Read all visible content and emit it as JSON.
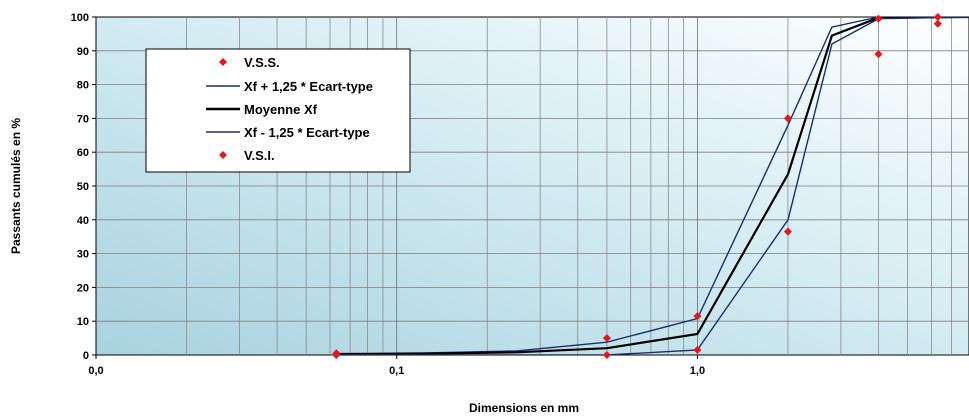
{
  "chart_data": {
    "type": "scatter",
    "x_scale": "log",
    "xlabel": "Dimensions en mm",
    "ylabel": "Passants cumulés en %",
    "xlim": [
      0.01,
      8
    ],
    "ylim": [
      0,
      100
    ],
    "y_ticks": [
      0,
      10,
      20,
      30,
      40,
      50,
      60,
      70,
      80,
      90,
      100
    ],
    "x_tick_labels": [
      {
        "value": 0.01,
        "label": "0,0"
      },
      {
        "value": 0.1,
        "label": "0,1"
      },
      {
        "value": 1,
        "label": "1,0"
      }
    ],
    "grid": true,
    "legend_position": "top-left",
    "series": [
      {
        "name": "V.S.S.",
        "kind": "markers",
        "color": "#e8141b",
        "points": [
          [
            0.063,
            0.5
          ],
          [
            0.5,
            5
          ],
          [
            1,
            11.5
          ],
          [
            2,
            70
          ],
          [
            4,
            99.5
          ],
          [
            6.3,
            100
          ]
        ]
      },
      {
        "name": "Xf + 1,25 * Ecart-type",
        "kind": "line",
        "color": "#1a2f6e",
        "points": [
          [
            0.063,
            0.4
          ],
          [
            0.125,
            0.6
          ],
          [
            0.25,
            1.2
          ],
          [
            0.5,
            3.8
          ],
          [
            1,
            10.8
          ],
          [
            2,
            68
          ],
          [
            2.8,
            97
          ],
          [
            4,
            100
          ],
          [
            8,
            100
          ]
        ]
      },
      {
        "name": "Moyenne Xf",
        "kind": "line",
        "color": "#000000",
        "points": [
          [
            0.063,
            0.2
          ],
          [
            0.125,
            0.4
          ],
          [
            0.25,
            0.8
          ],
          [
            0.5,
            2
          ],
          [
            1,
            6.2
          ],
          [
            2,
            53.5
          ],
          [
            2.8,
            94.5
          ],
          [
            4,
            99.8
          ],
          [
            8,
            100
          ]
        ]
      },
      {
        "name": "Xf - 1,25 * Ecart-type",
        "kind": "line",
        "color": "#1a2f6e",
        "points": [
          [
            0.063,
            0
          ],
          [
            0.125,
            0
          ],
          [
            0.25,
            0
          ],
          [
            0.5,
            0
          ],
          [
            1,
            1.5
          ],
          [
            2,
            40
          ],
          [
            2.8,
            92
          ],
          [
            4,
            99.5
          ],
          [
            8,
            100
          ]
        ]
      },
      {
        "name": "V.S.I.",
        "kind": "markers",
        "color": "#e8141b",
        "points": [
          [
            0.063,
            0
          ],
          [
            0.5,
            0
          ],
          [
            1,
            1.5
          ],
          [
            2,
            36.5
          ],
          [
            4,
            89
          ],
          [
            6.3,
            98
          ]
        ]
      }
    ]
  }
}
